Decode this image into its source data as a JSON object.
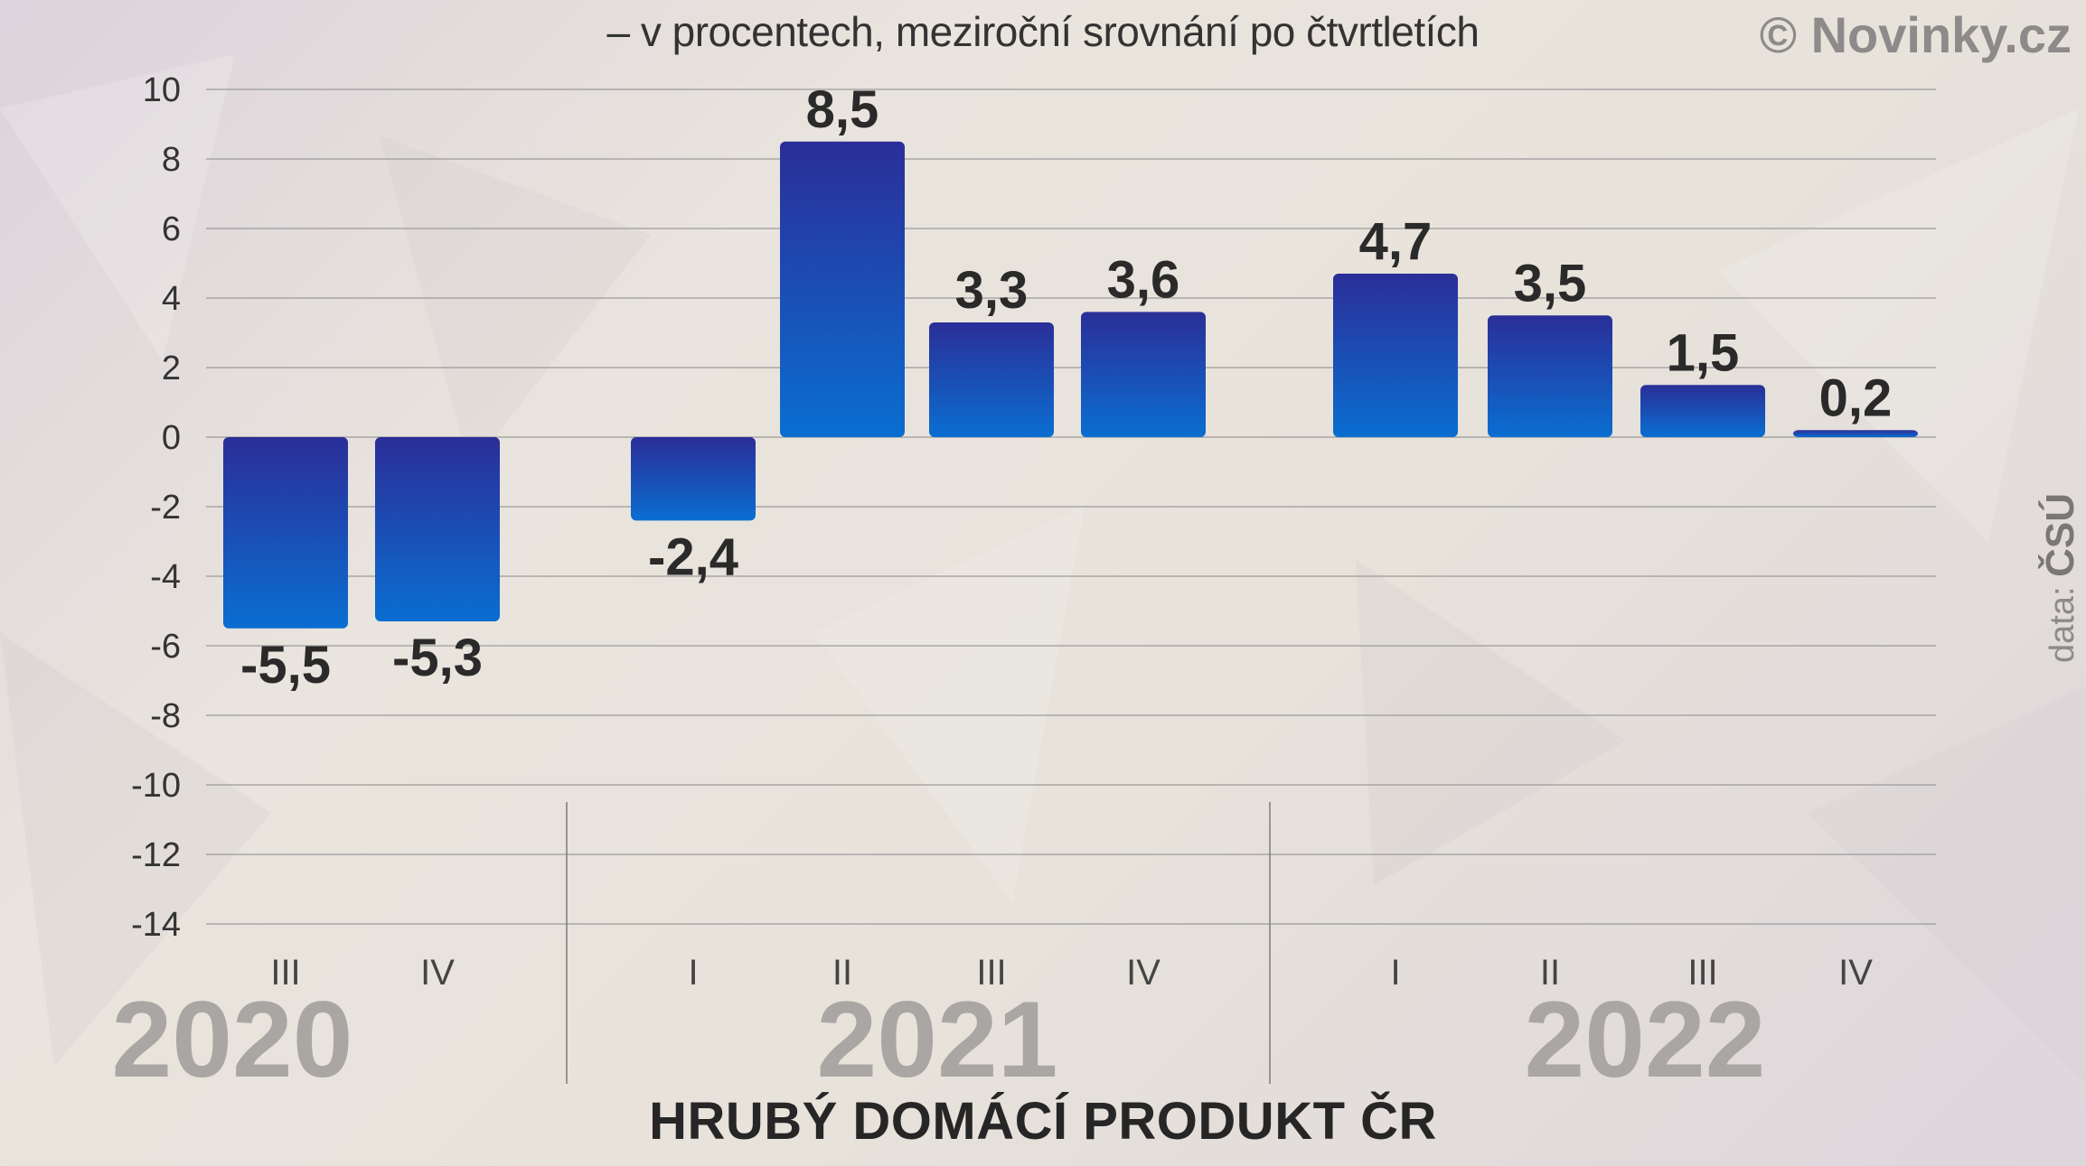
{
  "subtitle": "– v procentech, meziroční srovnání po čtvrtletích",
  "copyright": "© Novinky.cz",
  "source_prefix": "data:",
  "source_name": "ČSÚ",
  "title": "HRUBÝ DOMÁCÍ PRODUKT ČR",
  "colors": {
    "bar_top": "#2b2e98",
    "bar_bottom": "#0a6ed1",
    "grid": "#9a9a9a"
  },
  "chart_data": {
    "type": "bar",
    "title": "HRUBÝ DOMÁCÍ PRODUKT ČR",
    "subtitle": "– v procentech, meziroční srovnání po čtvrtletích",
    "ylim": [
      -14,
      10
    ],
    "yticks": [
      10,
      8,
      6,
      4,
      2,
      0,
      -2,
      -4,
      -6,
      -8,
      -10,
      -12,
      -14
    ],
    "categories": [
      "III",
      "IV",
      "I",
      "II",
      "III",
      "IV",
      "I",
      "II",
      "III",
      "IV"
    ],
    "groups": [
      {
        "year": "2020",
        "quarters": [
          "III",
          "IV"
        ]
      },
      {
        "year": "2021",
        "quarters": [
          "I",
          "II",
          "III",
          "IV"
        ]
      },
      {
        "year": "2022",
        "quarters": [
          "I",
          "II",
          "III",
          "IV"
        ]
      }
    ],
    "values": [
      -5.5,
      -5.3,
      -2.4,
      8.5,
      3.3,
      3.6,
      4.7,
      3.5,
      1.5,
      0.2
    ],
    "labels": [
      "-5,5",
      "-5,3",
      "-2,4",
      "8,5",
      "3,3",
      "3,6",
      "4,7",
      "3,5",
      "1,5",
      "0,2"
    ],
    "grid": true,
    "legend": "none"
  }
}
